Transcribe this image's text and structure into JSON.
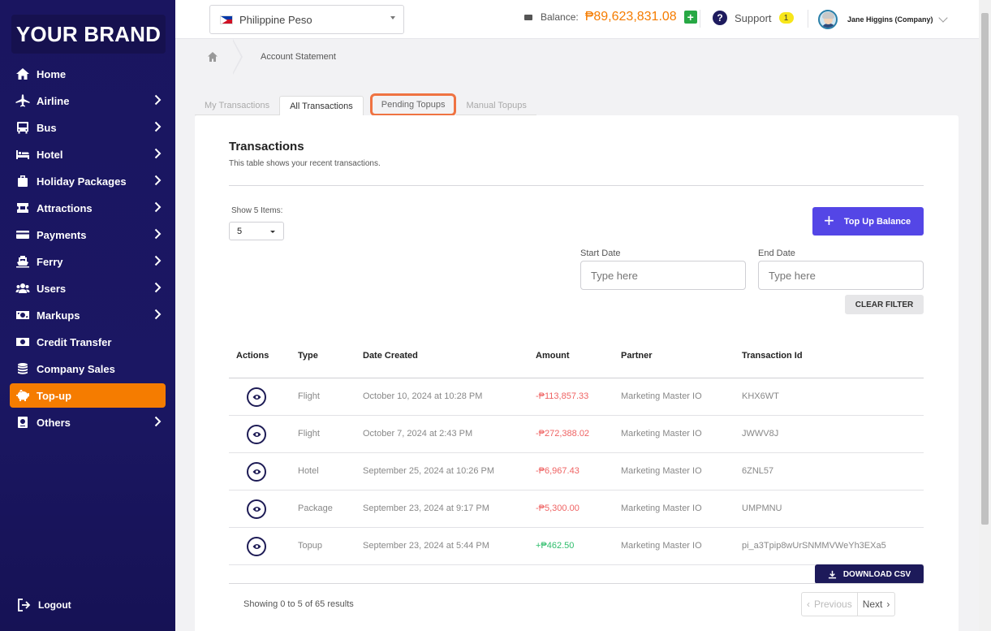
{
  "brand": "YOUR BRAND",
  "sidebar": {
    "items": [
      {
        "label": "Home",
        "icon": "home-icon",
        "has_sub": false
      },
      {
        "label": "Airline",
        "icon": "airplane-icon",
        "has_sub": true
      },
      {
        "label": "Bus",
        "icon": "bus-icon",
        "has_sub": true
      },
      {
        "label": "Hotel",
        "icon": "bed-icon",
        "has_sub": true
      },
      {
        "label": "Holiday Packages",
        "icon": "suitcase-icon",
        "has_sub": true
      },
      {
        "label": "Attractions",
        "icon": "ticket-icon",
        "has_sub": true
      },
      {
        "label": "Payments",
        "icon": "credit-card-icon",
        "has_sub": true
      },
      {
        "label": "Ferry",
        "icon": "ship-icon",
        "has_sub": true
      },
      {
        "label": "Users",
        "icon": "users-icon",
        "has_sub": true
      },
      {
        "label": "Markups",
        "icon": "money-icon",
        "has_sub": true
      },
      {
        "label": "Credit Transfer",
        "icon": "transfer-icon",
        "has_sub": false
      },
      {
        "label": "Company Sales",
        "icon": "coins-icon",
        "has_sub": false
      },
      {
        "label": "Top-up",
        "icon": "piggy-bank-icon",
        "has_sub": false,
        "active": true
      },
      {
        "label": "Others",
        "icon": "passport-icon",
        "has_sub": true
      }
    ],
    "logout": "Logout"
  },
  "topbar": {
    "currency": "Philippine Peso",
    "balance_label": "Balance:",
    "balance_value": "₱89,623,831.08",
    "support_label": "Support",
    "support_count": "1",
    "user_name": "Jane Higgins (Company)"
  },
  "breadcrumb": {
    "current": "Account Statement"
  },
  "tabs": [
    "My Transactions",
    "All Transactions",
    "Pending Topups",
    "Manual Topups"
  ],
  "card": {
    "title": "Transactions",
    "subtitle": "This table shows your recent transactions.",
    "show_label": "Show 5 Items:",
    "show_value": "5",
    "topup_label": "Top Up Balance",
    "start_date_label": "Start Date",
    "end_date_label": "End Date",
    "date_placeholder": "Type here",
    "clear_filter": "CLEAR FILTER",
    "download_csv": "DOWNLOAD CSV",
    "showing": "Showing 0 to 5 of 65 results",
    "prev": "Previous",
    "next": "Next"
  },
  "table": {
    "headers": [
      "Actions",
      "Type",
      "Date Created",
      "Amount",
      "Partner",
      "Transaction Id"
    ],
    "rows": [
      {
        "type": "Flight",
        "date": "October 10, 2024 at 10:28 PM",
        "amount": "-₱113,857.33",
        "sign": "neg",
        "partner": "Marketing Master IO",
        "txid": "KHX6WT"
      },
      {
        "type": "Flight",
        "date": "October 7, 2024 at 2:43 PM",
        "amount": "-₱272,388.02",
        "sign": "neg",
        "partner": "Marketing Master IO",
        "txid": "JWWV8J"
      },
      {
        "type": "Hotel",
        "date": "September 25, 2024 at 10:26 PM",
        "amount": "-₱6,967.43",
        "sign": "neg",
        "partner": "Marketing Master IO",
        "txid": "6ZNL57"
      },
      {
        "type": "Package",
        "date": "September 23, 2024 at 9:17 PM",
        "amount": "-₱5,300.00",
        "sign": "neg",
        "partner": "Marketing Master IO",
        "txid": "UMPMNU"
      },
      {
        "type": "Topup",
        "date": "September 23, 2024 at 5:44 PM",
        "amount": "+₱462.50",
        "sign": "pos",
        "partner": "Marketing Master IO",
        "txid": "pi_a3Tpip8wUrSNMMVWeYh3EXa5"
      }
    ]
  },
  "colors": {
    "sidebar": "#1b1763",
    "active": "#f57c00",
    "primary": "#5446e6",
    "negative": "#ef6363",
    "positive": "#2ebd6b",
    "highlight": "#ef7342"
  }
}
